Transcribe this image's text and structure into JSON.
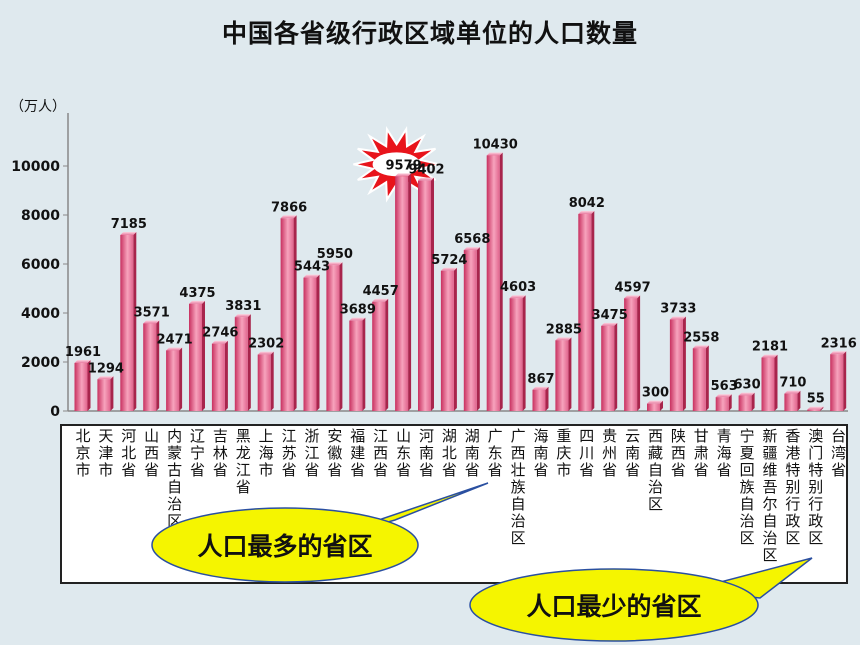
{
  "chart_data": {
    "type": "bar",
    "title": "中国各省级行政区域单位的人口数量",
    "ylabel": "（万人）",
    "ylim": [
      0,
      11700
    ],
    "yticks": [
      0,
      2000,
      4000,
      6000,
      8000,
      10000
    ],
    "grid": false,
    "categories": [
      "北京市",
      "天津市",
      "河北省",
      "山西省",
      "内蒙古自治区",
      "辽宁省",
      "吉林省",
      "黑龙江省",
      "上海市",
      "江苏省",
      "浙江省",
      "安徽省",
      "福建省",
      "江西省",
      "山东省",
      "河南省",
      "湖北省",
      "湖南省",
      "广东省",
      "广西壮族自治区",
      "海南省",
      "重庆市",
      "四川省",
      "贵州省",
      "云南省",
      "西藏自治区",
      "陕西省",
      "甘肃省",
      "青海省",
      "宁夏回族自治区",
      "新疆维吾尔自治区",
      "香港特别行政区",
      "澳门特别行政区",
      "台湾省"
    ],
    "values": [
      1961,
      1294,
      7185,
      3571,
      2471,
      4375,
      2746,
      3831,
      2302,
      7866,
      5443,
      5950,
      3689,
      4457,
      9579,
      9402,
      5724,
      6568,
      10430,
      4603,
      867,
      2885,
      8042,
      3475,
      4597,
      300,
      3733,
      2558,
      563,
      630,
      2181,
      710,
      55,
      2316
    ],
    "annotations": [
      "人口最多的省区",
      "人口最少的省区"
    ]
  },
  "colors": {
    "background": "#dfe9ee",
    "bar_dark": "#c8305f",
    "bar_light": "#f7a3bd",
    "callout_fill": "#f5f500",
    "burst_fill": "#e8141b"
  }
}
